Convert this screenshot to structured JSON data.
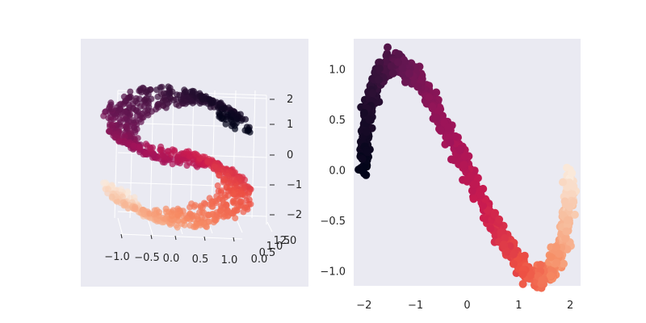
{
  "chart_data": [
    {
      "type": "scatter",
      "projection": "3d",
      "title": "",
      "xlabel": "",
      "ylabel": "",
      "zlabel": "",
      "x_ticks": [
        "−1.0",
        "−0.5",
        "0.0",
        "0.5",
        "1.0"
      ],
      "y_ticks": [
        "0.0",
        "0.5",
        "1.0",
        "1.5",
        "2.0"
      ],
      "z_ticks": [
        "2",
        "1",
        "0",
        "−1",
        "−2"
      ],
      "xlim": [
        -1.1,
        1.1
      ],
      "ylim": [
        0,
        2
      ],
      "zlim": [
        -2.2,
        2.2
      ],
      "grid": true,
      "background": "#eaeaf2",
      "colormap": "rocket",
      "point_count": 1000,
      "shape": "S-curve"
    },
    {
      "type": "scatter",
      "title": "",
      "xlabel": "",
      "ylabel": "",
      "x_ticks": [
        "−2",
        "−1",
        "0",
        "1",
        "2"
      ],
      "y_ticks": [
        "1.0",
        "0.5",
        "0.0",
        "−0.5",
        "−1.0"
      ],
      "xlim": [
        -2.2,
        2.2
      ],
      "ylim": [
        -1.15,
        1.3
      ],
      "grid": false,
      "background": "#eaeaf2",
      "colormap": "rocket",
      "point_count": 1000,
      "shape": "S-curve embedding"
    }
  ]
}
